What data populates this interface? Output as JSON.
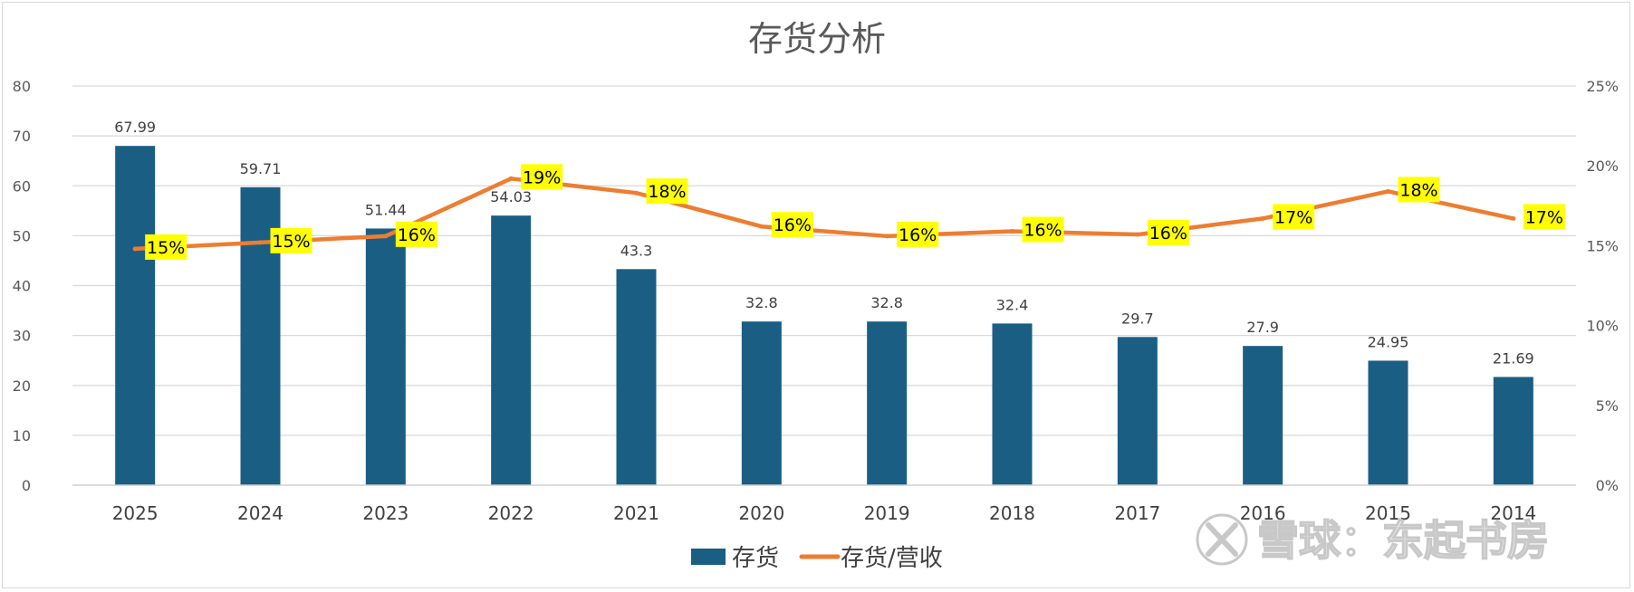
{
  "chart_data": {
    "type": "bar+line",
    "title": "存货分析",
    "categories": [
      "2025",
      "2024",
      "2023",
      "2022",
      "2021",
      "2020",
      "2019",
      "2018",
      "2017",
      "2016",
      "2015",
      "2014"
    ],
    "series": [
      {
        "name": "存货",
        "type": "bar",
        "axis": "left",
        "color": "#1a5e84",
        "values": [
          67.99,
          59.71,
          51.44,
          54.03,
          43.3,
          32.8,
          32.8,
          32.4,
          29.7,
          27.9,
          24.95,
          21.69
        ],
        "labels": [
          "67.99",
          "59.71",
          "51.44",
          "54.03",
          "43.3",
          "32.8",
          "32.8",
          "32.4",
          "29.7",
          "27.9",
          "24.95",
          "21.69"
        ]
      },
      {
        "name": "存货/营收",
        "type": "line",
        "axis": "right",
        "color": "#ed7d31",
        "label_bg": "#ffff00",
        "values": [
          14.8,
          15.2,
          15.6,
          19.2,
          18.3,
          16.2,
          15.6,
          15.9,
          15.7,
          16.7,
          18.4,
          16.7
        ],
        "labels": [
          "15%",
          "15%",
          "16%",
          "19%",
          "18%",
          "16%",
          "16%",
          "16%",
          "16%",
          "17%",
          "18%",
          "17%"
        ]
      }
    ],
    "y_left": {
      "min": 0,
      "max": 80,
      "step": 10,
      "ticks": [
        "0",
        "10",
        "20",
        "30",
        "40",
        "50",
        "60",
        "70",
        "80"
      ]
    },
    "y_right": {
      "min": 0,
      "max": 25,
      "step": 5,
      "ticks": [
        "0%",
        "5%",
        "10%",
        "15%",
        "20%",
        "25%"
      ]
    },
    "grid": true,
    "legend": "bottom-center",
    "xlabel": "",
    "ylabel": ""
  },
  "watermark": {
    "text": "雪球：东起书房",
    "icon": "xueqiu-logo-icon"
  }
}
